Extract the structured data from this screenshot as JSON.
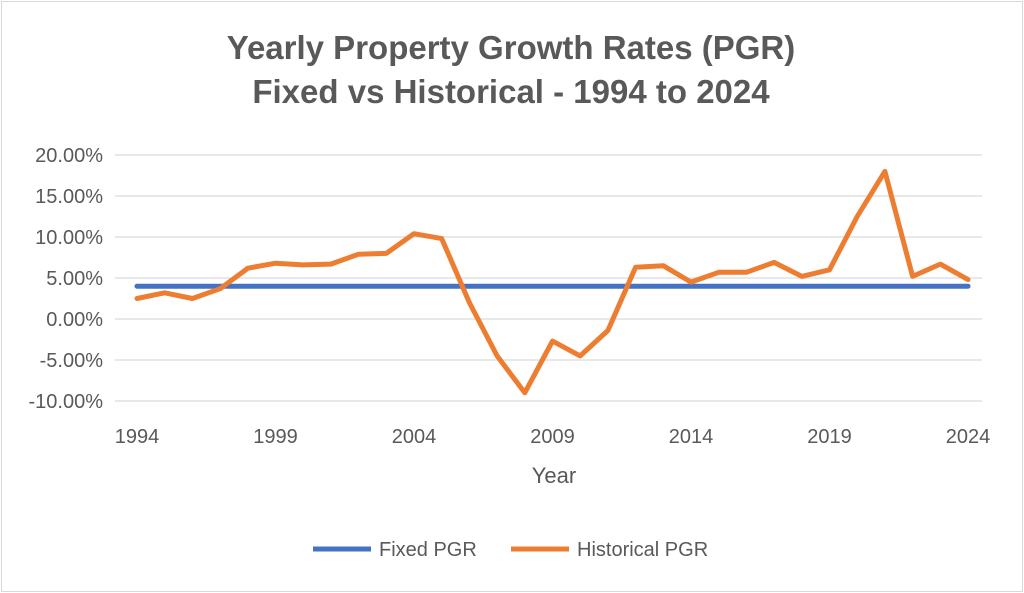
{
  "chart_data": {
    "type": "line",
    "title": "Yearly Property Growth Rates (PGR)",
    "subtitle": "Fixed vs Historical - 1994 to 2024",
    "xlabel": "Year",
    "ylabel": "",
    "xlim": [
      1994,
      2024
    ],
    "ylim": [
      -10,
      20
    ],
    "x_ticks": [
      "1994",
      "1999",
      "2004",
      "2009",
      "2014",
      "2019",
      "2024"
    ],
    "y_ticks": [
      "20.00%",
      "15.00%",
      "10.00%",
      "5.00%",
      "0.00%",
      "-5.00%",
      "-10.00%"
    ],
    "y_tick_values": [
      20,
      15,
      10,
      5,
      0,
      -5,
      -10
    ],
    "grid": true,
    "legend_position": "bottom",
    "x": [
      1994,
      1995,
      1996,
      1997,
      1998,
      1999,
      2000,
      2001,
      2002,
      2003,
      2004,
      2005,
      2006,
      2007,
      2008,
      2009,
      2010,
      2011,
      2012,
      2013,
      2014,
      2015,
      2016,
      2017,
      2018,
      2019,
      2020,
      2021,
      2022,
      2023,
      2024
    ],
    "series": [
      {
        "name": "Fixed PGR",
        "color": "#4472c4",
        "values": [
          4,
          4,
          4,
          4,
          4,
          4,
          4,
          4,
          4,
          4,
          4,
          4,
          4,
          4,
          4,
          4,
          4,
          4,
          4,
          4,
          4,
          4,
          4,
          4,
          4,
          4,
          4,
          4,
          4,
          4,
          4
        ]
      },
      {
        "name": "Historical PGR",
        "color": "#ed7d31",
        "values": [
          2.5,
          3.2,
          2.5,
          3.7,
          6.2,
          6.8,
          6.6,
          6.7,
          7.9,
          8.0,
          10.4,
          9.8,
          2.0,
          -4.5,
          -9.0,
          -2.7,
          -4.5,
          -1.4,
          6.3,
          6.5,
          4.5,
          5.7,
          5.7,
          6.9,
          5.2,
          6.0,
          12.5,
          18.0,
          5.2,
          6.7,
          4.8
        ]
      }
    ]
  }
}
